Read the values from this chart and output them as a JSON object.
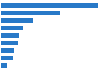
{
  "values": [
    290,
    175,
    95,
    65,
    55,
    50,
    40,
    35,
    18
  ],
  "bar_color": "#2879c8",
  "background_color": "#ffffff",
  "grid_color": "#d9d9d9",
  "figsize": [
    1.0,
    0.71
  ],
  "dpi": 100,
  "bar_height": 0.62
}
